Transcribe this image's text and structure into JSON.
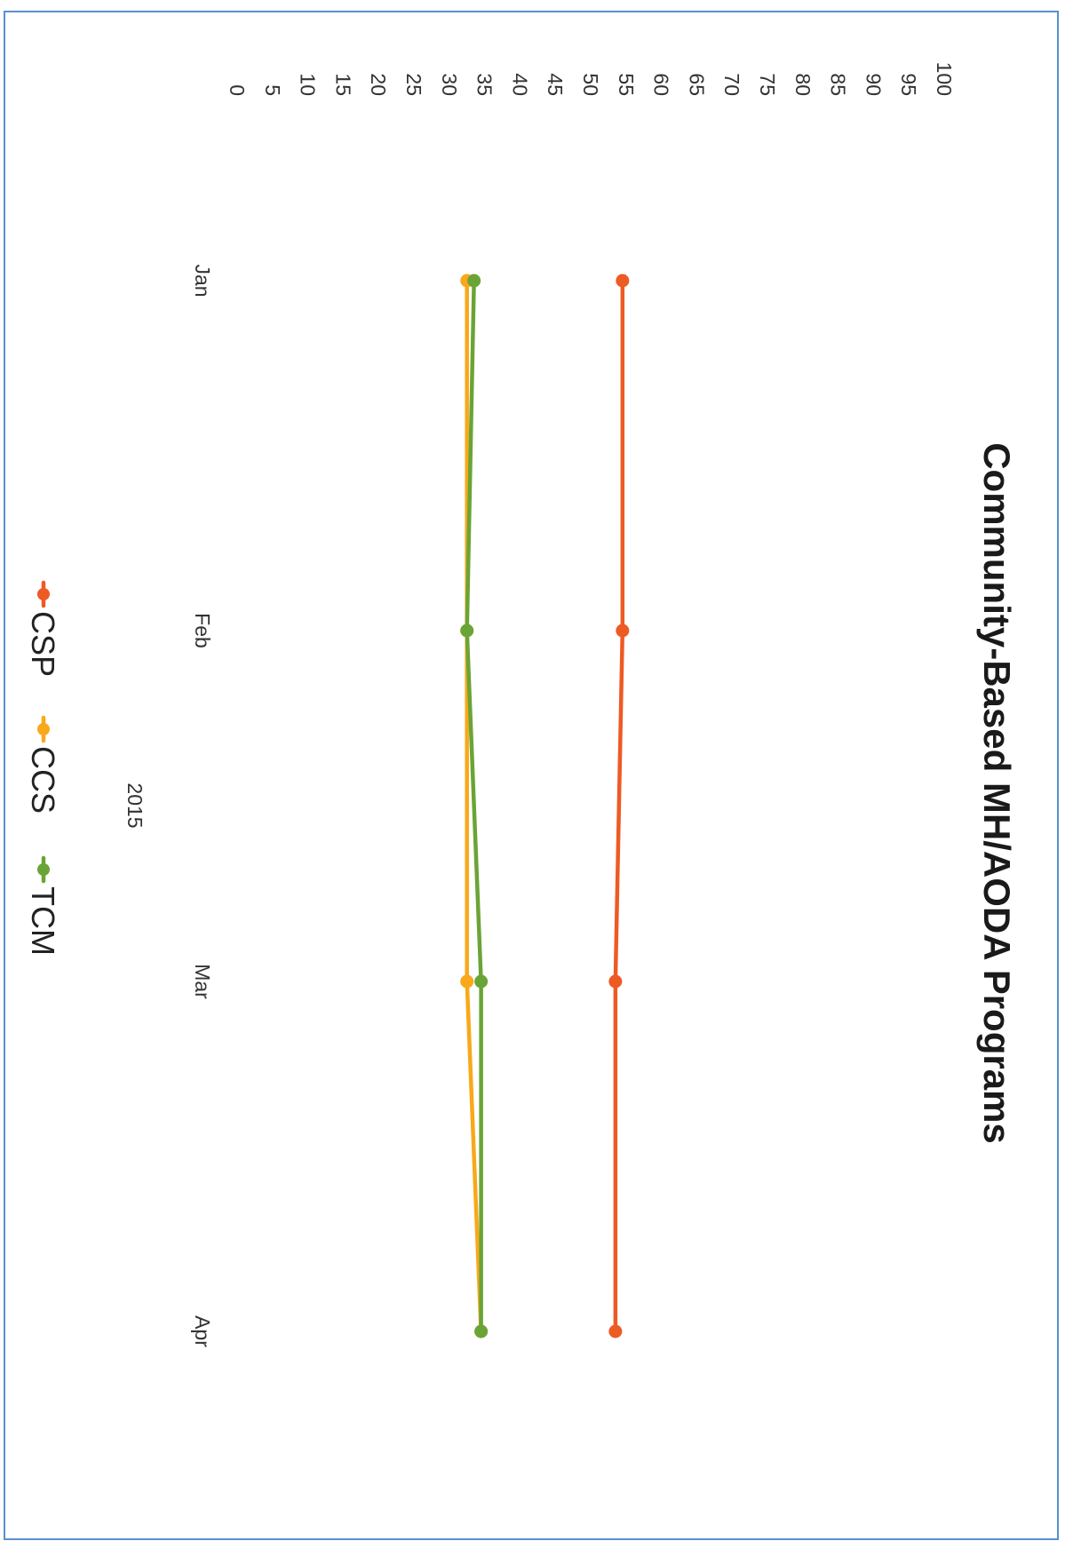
{
  "chart_data": {
    "type": "line",
    "title": "Community-Based MH/AODA Programs",
    "xlabel": "2015",
    "ylabel": "",
    "categories": [
      "Jan",
      "Feb",
      "Mar",
      "Apr"
    ],
    "ylim": [
      0,
      100
    ],
    "yticks": [
      0,
      5,
      10,
      15,
      20,
      25,
      30,
      35,
      40,
      45,
      50,
      55,
      60,
      65,
      70,
      75,
      80,
      85,
      90,
      95,
      100
    ],
    "grid": false,
    "legend": "bottom",
    "series": [
      {
        "name": "CSP",
        "color": "#ee5a24",
        "values": [
          54.5,
          54.5,
          53.5,
          53.5
        ]
      },
      {
        "name": "CCS",
        "color": "#f9a81a",
        "values": [
          32.5,
          32.5,
          32.5,
          34.5
        ]
      },
      {
        "name": "TCM",
        "color": "#6aa436",
        "values": [
          33.5,
          32.5,
          34.5,
          34.5
        ]
      }
    ]
  }
}
